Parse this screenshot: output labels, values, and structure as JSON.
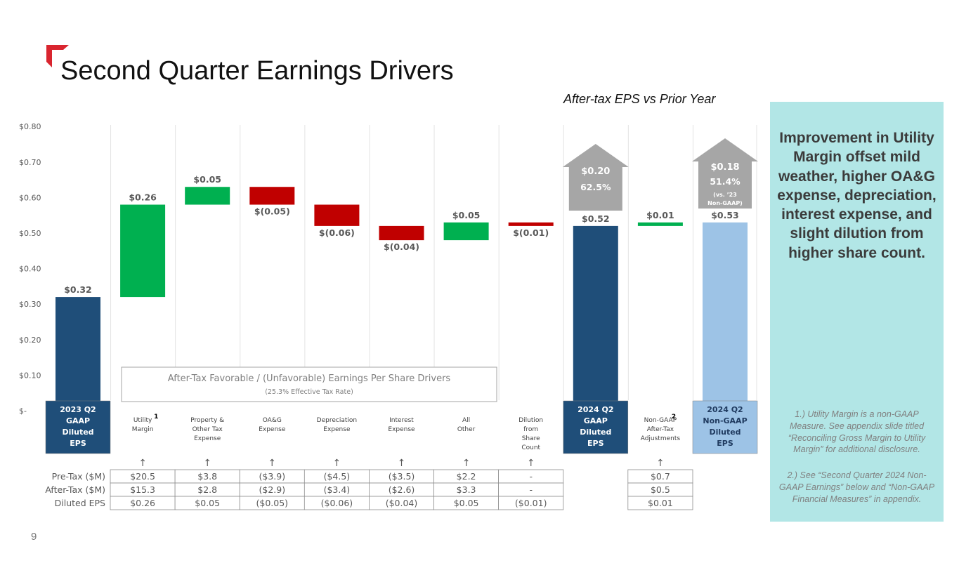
{
  "page": {
    "title": "Second Quarter Earnings Drivers",
    "subtitle": "After-tax EPS vs Prior Year",
    "page_number": "9",
    "accent_color": "#d9252f"
  },
  "side_panel": {
    "headline": "Improvement in Utility Margin offset mild weather, higher OA&G expense, depreciation, interest expense, and slight dilution from higher share count.",
    "note_1": "1.) Utility Margin is a non-GAAP Measure. See appendix slide titled “Reconciling Gross Margin to Utility Margin” for additional disclosure.",
    "note_2": "2.) See “Second Quarter 2024 Non-GAAP Earnings” below and “Non-GAAP Financial Measures” in appendix.",
    "background": "#b2e6e6"
  },
  "chart_data": {
    "type": "bar",
    "subtype": "waterfall",
    "ylim": [
      0,
      0.8
    ],
    "yticks": [
      "$0.80",
      "$0.70",
      "$0.60",
      "$0.50",
      "$0.40",
      "$0.30",
      "$0.20",
      "$0.10",
      "$-"
    ],
    "ytick_values": [
      0.8,
      0.7,
      0.6,
      0.5,
      0.4,
      0.3,
      0.2,
      0.1,
      0
    ],
    "colors": {
      "total": "#1f4e79",
      "total_light": "#9dc3e6",
      "increase": "#00b050",
      "decrease": "#c00000",
      "arrow": "#a6a6a6"
    },
    "bars": [
      {
        "label_lines": [
          "2023 Q2",
          "GAAP",
          "Diluted",
          "EPS"
        ],
        "kind": "total",
        "start": 0,
        "end": 0.32,
        "value_label": "$0.32"
      },
      {
        "label_lines": [
          "Utility",
          "Margin"
        ],
        "footnote": "1",
        "kind": "increase",
        "start": 0.32,
        "end": 0.58,
        "value_label": "$0.26"
      },
      {
        "label_lines": [
          "Property &",
          "Other Tax",
          "Expense"
        ],
        "kind": "increase",
        "start": 0.58,
        "end": 0.63,
        "value_label": "$0.05"
      },
      {
        "label_lines": [
          "OA&G",
          "Expense"
        ],
        "kind": "decrease",
        "start": 0.63,
        "end": 0.58,
        "value_label": "$(0.05)"
      },
      {
        "label_lines": [
          "Depreciation",
          "Expense"
        ],
        "kind": "decrease",
        "start": 0.58,
        "end": 0.52,
        "value_label": "$(0.06)"
      },
      {
        "label_lines": [
          "Interest",
          "Expense"
        ],
        "kind": "decrease",
        "start": 0.52,
        "end": 0.48,
        "value_label": "$(0.04)"
      },
      {
        "label_lines": [
          "All",
          "Other"
        ],
        "kind": "increase",
        "start": 0.48,
        "end": 0.53,
        "value_label": "$0.05"
      },
      {
        "label_lines": [
          "Dilution",
          "from",
          "Share",
          "Count"
        ],
        "kind": "decrease",
        "start": 0.53,
        "end": 0.52,
        "value_label": "$(0.01)"
      },
      {
        "label_lines": [
          "2024 Q2",
          "GAAP",
          "Diluted",
          "EPS"
        ],
        "kind": "total",
        "start": 0,
        "end": 0.52,
        "value_label": "$0.52"
      },
      {
        "label_lines": [
          "Non-GAAP",
          "After-Tax",
          "Adjustments"
        ],
        "footnote": "2",
        "kind": "increase",
        "start": 0.52,
        "end": 0.53,
        "value_label": "$0.01"
      },
      {
        "label_lines": [
          "2024 Q2",
          "Non-GAAP",
          "Diluted",
          "EPS"
        ],
        "kind": "total_light",
        "start": 0,
        "end": 0.53,
        "value_label": "$0.53"
      }
    ],
    "callouts": [
      {
        "bar_index": 8,
        "lines": [
          "$0.20",
          "62.5%"
        ]
      },
      {
        "bar_index": 10,
        "lines": [
          "$0.18",
          "51.4%",
          "(vs. ’23",
          "Non-GAAP)"
        ]
      }
    ],
    "legend_box": {
      "title": "After-Tax Favorable / (Unfavorable) Earnings Per Share Drivers",
      "subtitle": "25.3% Effective Tax Rate"
    },
    "table": {
      "row_labels": [
        "Pre-Tax ($M)",
        "After-Tax ($M)",
        "Diluted EPS"
      ],
      "columns": [
        {
          "bar_index": 1,
          "values": [
            "$20.5",
            "$15.3",
            "$0.26"
          ]
        },
        {
          "bar_index": 2,
          "values": [
            "$3.8",
            "$2.8",
            "$0.05"
          ]
        },
        {
          "bar_index": 3,
          "values": [
            "($3.9)",
            "($2.9)",
            "($0.05)"
          ]
        },
        {
          "bar_index": 4,
          "values": [
            "($4.5)",
            "($3.4)",
            "($0.06)"
          ]
        },
        {
          "bar_index": 5,
          "values": [
            "($3.5)",
            "($2.6)",
            "($0.04)"
          ]
        },
        {
          "bar_index": 6,
          "values": [
            "$2.2",
            "$3.3",
            "$0.05"
          ]
        },
        {
          "bar_index": 7,
          "values": [
            "-",
            "-",
            "($0.01)"
          ]
        },
        {
          "bar_index": 9,
          "values": [
            "$0.7",
            "$0.5",
            "$0.01"
          ]
        }
      ],
      "arrow_glyph": "↑"
    }
  }
}
